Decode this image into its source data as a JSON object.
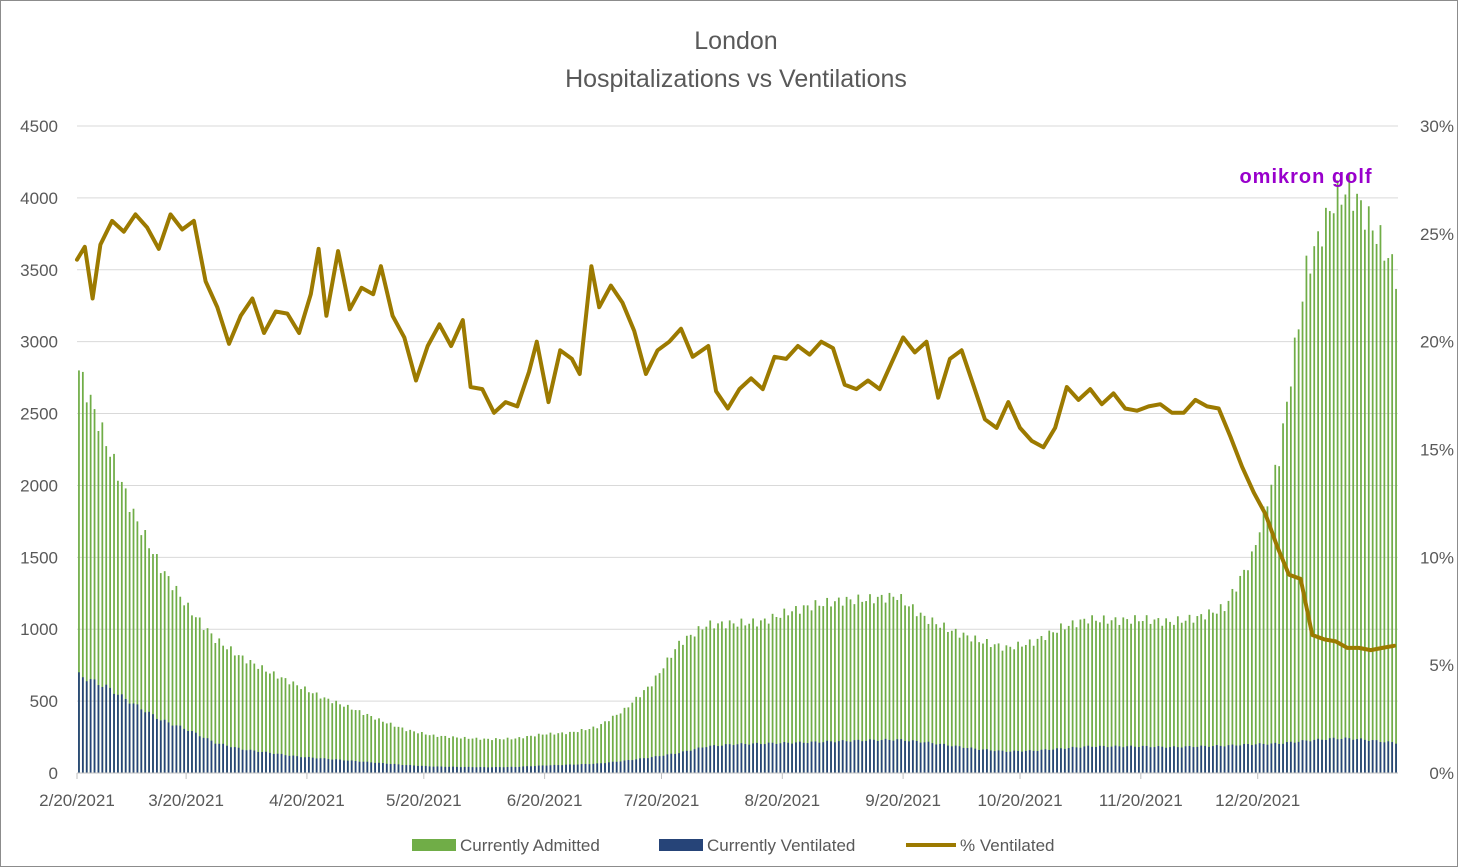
{
  "chart_data": {
    "type": "bar",
    "title": "London",
    "subtitle": "Hospitalizations vs Ventilations",
    "x_tick_labels": [
      "2/20/2021",
      "3/20/2021",
      "4/20/2021",
      "5/20/2021",
      "6/20/2021",
      "7/20/2021",
      "8/20/2021",
      "9/20/2021",
      "10/20/2021",
      "11/20/2021",
      "12/20/2021"
    ],
    "y_left": {
      "min": 0,
      "max": 4500,
      "ticks": [
        "0",
        "500",
        "1000",
        "1500",
        "2000",
        "2500",
        "3000",
        "3500",
        "4000",
        "4500"
      ]
    },
    "y_right": {
      "min": 0,
      "max": 30,
      "ticks": [
        "0%",
        "5%",
        "10%",
        "15%",
        "20%",
        "25%",
        "30%"
      ]
    },
    "grid": true,
    "legend_position": "bottom",
    "annotation": "omikron golf",
    "colors": {
      "admitted": "#70ad47",
      "ventilated": "#264478",
      "pct": "#9c7a00",
      "annotation": "#9900cc"
    },
    "series": [
      {
        "name": "Currently Admitted",
        "kind": "bar",
        "axis": "left",
        "points": [
          [
            "2021-02-20",
            2800
          ],
          [
            "2021-02-27",
            2300
          ],
          [
            "2021-03-06",
            1800
          ],
          [
            "2021-03-13",
            1430
          ],
          [
            "2021-03-20",
            1150
          ],
          [
            "2021-03-27",
            930
          ],
          [
            "2021-04-03",
            800
          ],
          [
            "2021-04-10",
            700
          ],
          [
            "2021-04-17",
            610
          ],
          [
            "2021-04-24",
            520
          ],
          [
            "2021-05-01",
            450
          ],
          [
            "2021-05-08",
            370
          ],
          [
            "2021-05-15",
            300
          ],
          [
            "2021-05-22",
            260
          ],
          [
            "2021-05-29",
            245
          ],
          [
            "2021-06-05",
            235
          ],
          [
            "2021-06-12",
            240
          ],
          [
            "2021-06-19",
            270
          ],
          [
            "2021-06-26",
            280
          ],
          [
            "2021-07-03",
            320
          ],
          [
            "2021-07-10",
            440
          ],
          [
            "2021-07-17",
            620
          ],
          [
            "2021-07-24",
            900
          ],
          [
            "2021-07-31",
            1030
          ],
          [
            "2021-08-07",
            1040
          ],
          [
            "2021-08-14",
            1050
          ],
          [
            "2021-08-21",
            1120
          ],
          [
            "2021-08-28",
            1170
          ],
          [
            "2021-09-04",
            1200
          ],
          [
            "2021-09-11",
            1210
          ],
          [
            "2021-09-18",
            1230
          ],
          [
            "2021-09-25",
            1080
          ],
          [
            "2021-10-02",
            990
          ],
          [
            "2021-10-09",
            920
          ],
          [
            "2021-10-16",
            870
          ],
          [
            "2021-10-23",
            910
          ],
          [
            "2021-10-30",
            1010
          ],
          [
            "2021-11-06",
            1070
          ],
          [
            "2021-11-13",
            1060
          ],
          [
            "2021-11-20",
            1070
          ],
          [
            "2021-11-27",
            1050
          ],
          [
            "2021-12-04",
            1080
          ],
          [
            "2021-12-11",
            1150
          ],
          [
            "2021-12-18",
            1500
          ],
          [
            "2021-12-25",
            2200
          ],
          [
            "2022-01-01",
            3500
          ],
          [
            "2022-01-08",
            3980
          ],
          [
            "2022-01-12",
            4070
          ],
          [
            "2022-01-16",
            3890
          ],
          [
            "2022-01-20",
            3700
          ],
          [
            "2022-01-24",
            3470
          ]
        ]
      },
      {
        "name": "Currently Ventilated",
        "kind": "bar",
        "axis": "left",
        "points": [
          [
            "2021-02-20",
            680
          ],
          [
            "2021-02-27",
            600
          ],
          [
            "2021-03-06",
            480
          ],
          [
            "2021-03-13",
            370
          ],
          [
            "2021-03-20",
            300
          ],
          [
            "2021-03-27",
            210
          ],
          [
            "2021-04-03",
            165
          ],
          [
            "2021-04-10",
            140
          ],
          [
            "2021-04-17",
            115
          ],
          [
            "2021-04-24",
            100
          ],
          [
            "2021-05-01",
            85
          ],
          [
            "2021-05-08",
            70
          ],
          [
            "2021-05-15",
            55
          ],
          [
            "2021-05-22",
            45
          ],
          [
            "2021-05-29",
            42
          ],
          [
            "2021-06-05",
            40
          ],
          [
            "2021-06-12",
            42
          ],
          [
            "2021-06-19",
            52
          ],
          [
            "2021-06-26",
            58
          ],
          [
            "2021-07-03",
            65
          ],
          [
            "2021-07-10",
            85
          ],
          [
            "2021-07-17",
            110
          ],
          [
            "2021-07-24",
            140
          ],
          [
            "2021-07-31",
            185
          ],
          [
            "2021-08-07",
            200
          ],
          [
            "2021-08-14",
            205
          ],
          [
            "2021-08-21",
            210
          ],
          [
            "2021-08-28",
            215
          ],
          [
            "2021-09-04",
            222
          ],
          [
            "2021-09-11",
            228
          ],
          [
            "2021-09-18",
            232
          ],
          [
            "2021-09-25",
            215
          ],
          [
            "2021-10-02",
            190
          ],
          [
            "2021-10-09",
            165
          ],
          [
            "2021-10-16",
            150
          ],
          [
            "2021-10-23",
            155
          ],
          [
            "2021-10-30",
            170
          ],
          [
            "2021-11-06",
            185
          ],
          [
            "2021-11-13",
            185
          ],
          [
            "2021-11-20",
            185
          ],
          [
            "2021-11-27",
            180
          ],
          [
            "2021-12-04",
            185
          ],
          [
            "2021-12-11",
            190
          ],
          [
            "2021-12-18",
            200
          ],
          [
            "2021-12-25",
            205
          ],
          [
            "2022-01-01",
            225
          ],
          [
            "2022-01-08",
            240
          ],
          [
            "2022-01-12",
            240
          ],
          [
            "2022-01-16",
            232
          ],
          [
            "2022-01-20",
            220
          ],
          [
            "2022-01-24",
            210
          ]
        ]
      },
      {
        "name": "% Ventilated",
        "kind": "line",
        "axis": "right",
        "points": [
          [
            "2021-02-20",
            23.8
          ],
          [
            "2021-02-22",
            24.4
          ],
          [
            "2021-02-24",
            22.0
          ],
          [
            "2021-02-26",
            24.5
          ],
          [
            "2021-03-01",
            25.6
          ],
          [
            "2021-03-04",
            25.1
          ],
          [
            "2021-03-07",
            25.9
          ],
          [
            "2021-03-10",
            25.3
          ],
          [
            "2021-03-13",
            24.3
          ],
          [
            "2021-03-16",
            25.9
          ],
          [
            "2021-03-19",
            25.2
          ],
          [
            "2021-03-22",
            25.6
          ],
          [
            "2021-03-25",
            22.8
          ],
          [
            "2021-03-28",
            21.6
          ],
          [
            "2021-03-31",
            19.9
          ],
          [
            "2021-04-03",
            21.2
          ],
          [
            "2021-04-06",
            22.0
          ],
          [
            "2021-04-09",
            20.4
          ],
          [
            "2021-04-12",
            21.4
          ],
          [
            "2021-04-15",
            21.3
          ],
          [
            "2021-04-18",
            20.4
          ],
          [
            "2021-04-21",
            22.2
          ],
          [
            "2021-04-23",
            24.3
          ],
          [
            "2021-04-25",
            21.2
          ],
          [
            "2021-04-28",
            24.2
          ],
          [
            "2021-05-01",
            21.5
          ],
          [
            "2021-05-04",
            22.5
          ],
          [
            "2021-05-07",
            22.2
          ],
          [
            "2021-05-09",
            23.5
          ],
          [
            "2021-05-12",
            21.2
          ],
          [
            "2021-05-15",
            20.2
          ],
          [
            "2021-05-18",
            18.2
          ],
          [
            "2021-05-21",
            19.8
          ],
          [
            "2021-05-24",
            20.8
          ],
          [
            "2021-05-27",
            19.8
          ],
          [
            "2021-05-30",
            21.0
          ],
          [
            "2021-06-01",
            17.9
          ],
          [
            "2021-06-04",
            17.8
          ],
          [
            "2021-06-07",
            16.7
          ],
          [
            "2021-06-10",
            17.2
          ],
          [
            "2021-06-13",
            17.0
          ],
          [
            "2021-06-16",
            18.6
          ],
          [
            "2021-06-18",
            20.0
          ],
          [
            "2021-06-21",
            17.2
          ],
          [
            "2021-06-24",
            19.6
          ],
          [
            "2021-06-27",
            19.2
          ],
          [
            "2021-06-29",
            18.5
          ],
          [
            "2021-07-02",
            23.5
          ],
          [
            "2021-07-04",
            21.6
          ],
          [
            "2021-07-07",
            22.6
          ],
          [
            "2021-07-10",
            21.8
          ],
          [
            "2021-07-13",
            20.5
          ],
          [
            "2021-07-16",
            18.5
          ],
          [
            "2021-07-19",
            19.6
          ],
          [
            "2021-07-22",
            20.0
          ],
          [
            "2021-07-25",
            20.6
          ],
          [
            "2021-07-28",
            19.3
          ],
          [
            "2021-08-01",
            19.8
          ],
          [
            "2021-08-03",
            17.7
          ],
          [
            "2021-08-06",
            16.9
          ],
          [
            "2021-08-09",
            17.8
          ],
          [
            "2021-08-12",
            18.3
          ],
          [
            "2021-08-15",
            17.8
          ],
          [
            "2021-08-18",
            19.3
          ],
          [
            "2021-08-21",
            19.2
          ],
          [
            "2021-08-24",
            19.8
          ],
          [
            "2021-08-27",
            19.4
          ],
          [
            "2021-08-30",
            20.0
          ],
          [
            "2021-09-02",
            19.7
          ],
          [
            "2021-09-05",
            18.0
          ],
          [
            "2021-09-08",
            17.8
          ],
          [
            "2021-09-11",
            18.2
          ],
          [
            "2021-09-14",
            17.8
          ],
          [
            "2021-09-17",
            19.0
          ],
          [
            "2021-09-20",
            20.2
          ],
          [
            "2021-09-23",
            19.5
          ],
          [
            "2021-09-26",
            20.0
          ],
          [
            "2021-09-29",
            17.4
          ],
          [
            "2021-10-02",
            19.2
          ],
          [
            "2021-10-05",
            19.6
          ],
          [
            "2021-10-08",
            18.0
          ],
          [
            "2021-10-11",
            16.4
          ],
          [
            "2021-10-14",
            16.0
          ],
          [
            "2021-10-17",
            17.2
          ],
          [
            "2021-10-20",
            16.0
          ],
          [
            "2021-10-23",
            15.4
          ],
          [
            "2021-10-26",
            15.1
          ],
          [
            "2021-10-29",
            16.0
          ],
          [
            "2021-11-01",
            17.9
          ],
          [
            "2021-11-04",
            17.3
          ],
          [
            "2021-11-07",
            17.8
          ],
          [
            "2021-11-10",
            17.1
          ],
          [
            "2021-11-13",
            17.6
          ],
          [
            "2021-11-16",
            16.9
          ],
          [
            "2021-11-19",
            16.8
          ],
          [
            "2021-11-22",
            17.0
          ],
          [
            "2021-11-25",
            17.1
          ],
          [
            "2021-11-28",
            16.7
          ],
          [
            "2021-12-01",
            16.7
          ],
          [
            "2021-12-04",
            17.3
          ],
          [
            "2021-12-07",
            17.0
          ],
          [
            "2021-12-10",
            16.9
          ],
          [
            "2021-12-13",
            15.6
          ],
          [
            "2021-12-16",
            14.2
          ],
          [
            "2021-12-19",
            13.0
          ],
          [
            "2021-12-22",
            12.0
          ],
          [
            "2021-12-25",
            10.5
          ],
          [
            "2021-12-28",
            9.2
          ],
          [
            "2021-12-31",
            9.0
          ],
          [
            "2022-01-03",
            6.4
          ],
          [
            "2022-01-06",
            6.2
          ],
          [
            "2022-01-09",
            6.1
          ],
          [
            "2022-01-12",
            5.8
          ],
          [
            "2022-01-15",
            5.8
          ],
          [
            "2022-01-18",
            5.7
          ],
          [
            "2022-01-21",
            5.8
          ],
          [
            "2022-01-24",
            5.9
          ]
        ]
      }
    ]
  }
}
